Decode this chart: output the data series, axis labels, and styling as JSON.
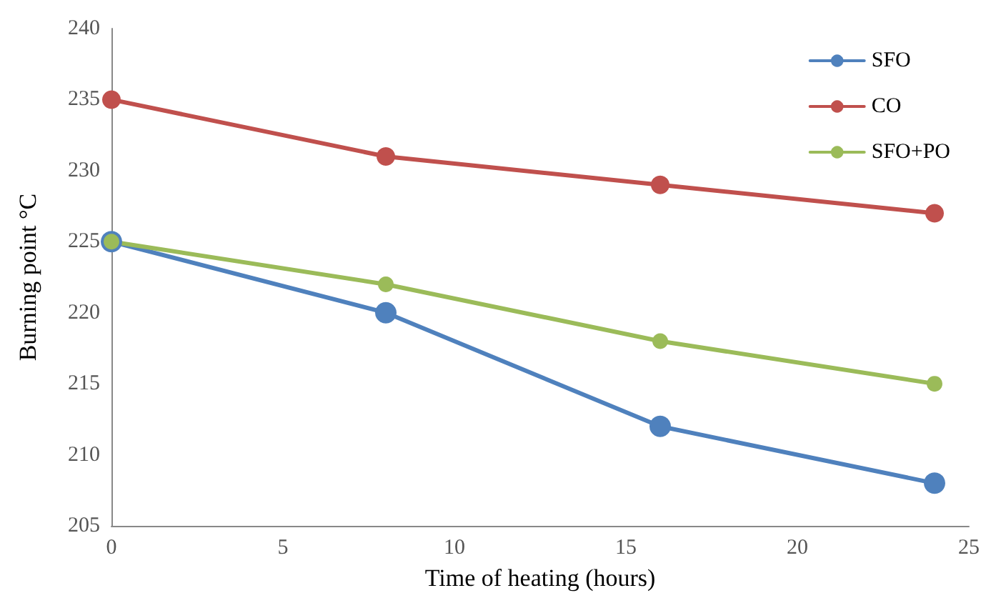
{
  "chart_data": {
    "type": "line",
    "xlabel": "Time of heating (hours)",
    "ylabel": "Burning point °C",
    "x": [
      0,
      8,
      16,
      24
    ],
    "series": [
      {
        "name": "SFO",
        "color": "#4f81bd",
        "values": [
          225,
          220,
          212,
          208
        ]
      },
      {
        "name": "CO",
        "color": "#c0504d",
        "values": [
          235,
          231,
          229,
          227
        ]
      },
      {
        "name": "SFO+PO",
        "color": "#9bbb59",
        "values": [
          225,
          222,
          218,
          215
        ]
      }
    ],
    "xlim": [
      0,
      25
    ],
    "xticks": [
      0,
      5,
      10,
      15,
      20,
      25
    ],
    "ylim": [
      205,
      240
    ],
    "yticks": [
      205,
      210,
      215,
      220,
      225,
      230,
      235,
      240
    ],
    "grid": false,
    "legend": "top right",
    "marker": "circle",
    "line_style": "solid"
  }
}
